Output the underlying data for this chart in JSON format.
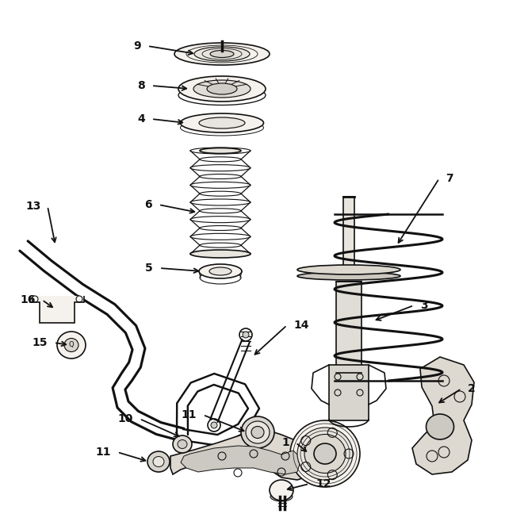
{
  "bg_color": "#ffffff",
  "line_color": "#111111",
  "fig_width": 6.37,
  "fig_height": 6.48,
  "dpi": 100
}
